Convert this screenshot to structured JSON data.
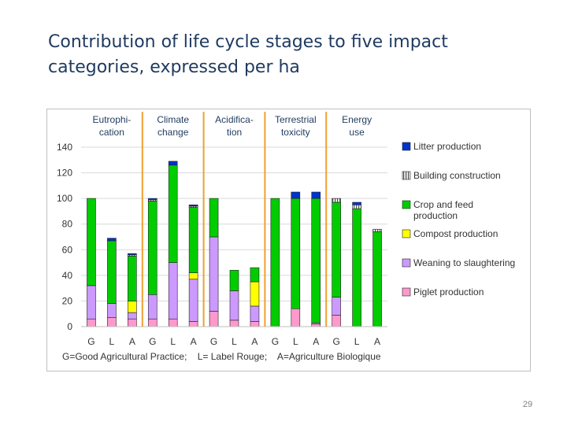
{
  "slide": {
    "title": "Contribution of life cycle stages to five impact categories, expressed per ha",
    "page_number": "29"
  },
  "chart_data": {
    "type": "bar",
    "stacked": true,
    "categories": [
      "G",
      "L",
      "A",
      "G",
      "L",
      "A",
      "G",
      "L",
      "A",
      "G",
      "L",
      "A",
      "G",
      "L",
      "A"
    ],
    "groups": [
      {
        "label": [
          "Eutrophi-",
          "cation"
        ],
        "span": [
          0,
          2
        ]
      },
      {
        "label": [
          "Climate",
          "change"
        ],
        "span": [
          3,
          5
        ]
      },
      {
        "label": [
          "Acidifica-",
          "tion"
        ],
        "span": [
          6,
          8
        ]
      },
      {
        "label": [
          "Terrestrial",
          "toxicity"
        ],
        "span": [
          9,
          11
        ]
      },
      {
        "label": [
          "Energy",
          "use"
        ],
        "span": [
          12,
          14
        ]
      }
    ],
    "yticks": [
      0,
      20,
      40,
      60,
      80,
      100,
      120,
      140
    ],
    "ylim": [
      0,
      140
    ],
    "legend_position": "right",
    "footnote": "G=Good Agricultural Practice;    L= Label Rouge;    A=Agriculture Biologique",
    "series": [
      {
        "name": "Piglet production",
        "color": "#ff99cc",
        "values": [
          6,
          7,
          6,
          6,
          6,
          4,
          12,
          5,
          4,
          0,
          14,
          2,
          9,
          0,
          0
        ]
      },
      {
        "name": "Weaning to slaughtering",
        "color": "#cc99ff",
        "values": [
          26,
          11,
          5,
          19,
          44,
          33,
          58,
          23,
          12,
          0,
          0,
          1,
          14,
          0,
          0
        ]
      },
      {
        "name": "Compost production",
        "color": "#ffff00",
        "values": [
          0,
          0,
          9,
          0,
          0,
          5,
          0,
          0,
          19,
          0,
          0,
          0,
          0,
          0,
          0
        ]
      },
      {
        "name": "Crop and feed production",
        "color": "#00cc00",
        "values": [
          68,
          49,
          35,
          73,
          76,
          51,
          30,
          16,
          11,
          100,
          86,
          97,
          74,
          92,
          74
        ]
      },
      {
        "name": "Building construction",
        "color": "#e6e6e6",
        "hatched": true,
        "values": [
          0,
          0,
          1,
          1,
          0,
          1,
          0,
          0,
          0,
          0,
          0,
          0,
          3,
          3,
          2
        ]
      },
      {
        "name": "Litter production",
        "color": "#0033cc",
        "values": [
          0,
          2,
          1,
          1,
          3,
          1,
          0,
          0,
          0,
          0,
          5,
          5,
          0,
          2,
          0
        ]
      }
    ],
    "legend_order": [
      "Litter production",
      "Building construction",
      "Crop and feed production",
      "Compost production",
      "Weaning to slaughtering",
      "Piglet production"
    ],
    "legend_labels": {
      "Litter production": [
        "Litter production"
      ],
      "Building construction": [
        "Building construction"
      ],
      "Crop and feed production": [
        "Crop and feed",
        "production"
      ],
      "Compost production": [
        "Compost production"
      ],
      "Weaning to slaughtering": [
        "Weaning to slaughtering"
      ],
      "Piglet production": [
        "Piglet production"
      ]
    },
    "colors": {
      "separator": "#f0a030",
      "frame": "#bfbfbf"
    }
  }
}
